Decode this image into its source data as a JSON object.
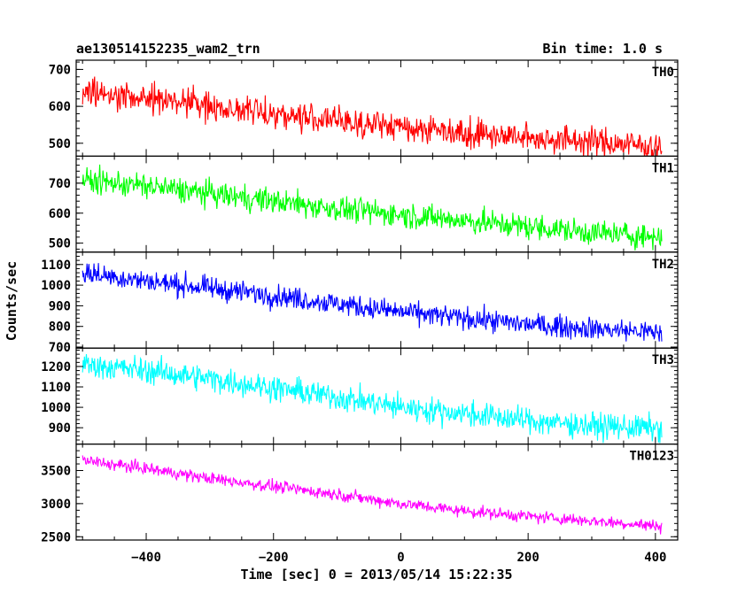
{
  "header": {
    "left_title": "ae130514152235_wam2_trn",
    "right_title": "Bin time: 1.0 s"
  },
  "chart_data": {
    "type": "line",
    "title": "ae130514152235_wam2_trn",
    "subtitle": "Bin time: 1.0 s",
    "xlabel": "Time [sec] 0 = 2013/05/14 15:22:35",
    "ylabel": "Counts/sec",
    "xlim": [
      -510,
      435
    ],
    "x_ticks": [
      -400,
      -200,
      0,
      200,
      400
    ],
    "x_range": [
      -500,
      410
    ],
    "bin_time_s": 1.0,
    "grid": false,
    "legend": "none",
    "panels": [
      {
        "name": "TH0",
        "color": "#ff0000",
        "ylim": [
          465,
          725
        ],
        "y_ticks": [
          500,
          600,
          700
        ],
        "x": [
          -500,
          -400,
          -300,
          -200,
          -100,
          0,
          100,
          200,
          300,
          410
        ],
        "values": [
          640,
          625,
          600,
          580,
          560,
          545,
          530,
          515,
          505,
          490
        ],
        "noise": 28
      },
      {
        "name": "TH1",
        "color": "#00ff00",
        "ylim": [
          470,
          790
        ],
        "y_ticks": [
          500,
          600,
          700
        ],
        "x": [
          -500,
          -400,
          -300,
          -200,
          -100,
          0,
          100,
          200,
          300,
          410
        ],
        "values": [
          710,
          690,
          665,
          640,
          615,
          595,
          575,
          555,
          535,
          520
        ],
        "noise": 30
      },
      {
        "name": "TH2",
        "color": "#0000ff",
        "ylim": [
          695,
          1160
        ],
        "y_ticks": [
          700,
          800,
          900,
          1000,
          1100
        ],
        "x": [
          -500,
          -400,
          -300,
          -200,
          -100,
          0,
          100,
          200,
          300,
          410
        ],
        "values": [
          1060,
          1020,
          985,
          950,
          910,
          870,
          840,
          810,
          790,
          770
        ],
        "noise": 38
      },
      {
        "name": "TH3",
        "color": "#00ffff",
        "ylim": [
          820,
          1290
        ],
        "y_ticks": [
          900,
          1000,
          1100,
          1200
        ],
        "x": [
          -500,
          -400,
          -300,
          -200,
          -100,
          0,
          100,
          200,
          300,
          410
        ],
        "values": [
          1210,
          1180,
          1140,
          1095,
          1050,
          1000,
          970,
          935,
          910,
          895
        ],
        "noise": 45
      },
      {
        "name": "TH0123",
        "color": "#ff00ff",
        "ylim": [
          2450,
          3900
        ],
        "y_ticks": [
          2500,
          3000,
          3500
        ],
        "x": [
          -500,
          -400,
          -300,
          -200,
          -100,
          0,
          100,
          200,
          300,
          410
        ],
        "values": [
          3650,
          3530,
          3380,
          3260,
          3140,
          3000,
          2890,
          2810,
          2740,
          2660
        ],
        "noise": 65
      }
    ]
  }
}
